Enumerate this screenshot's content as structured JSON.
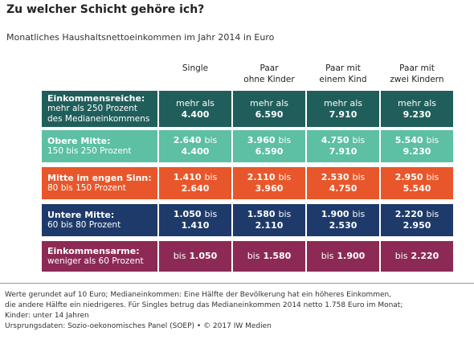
{
  "header": {
    "title": "Zu welcher Schicht gehöre ich?",
    "subtitle": "Monatliches Haushaltsnettoeinkommen im Jahr 2014 in Euro"
  },
  "table": {
    "columns": [
      [
        "Single"
      ],
      [
        "Paar",
        "ohne Kinder"
      ],
      [
        "Paar mit",
        "einem Kind"
      ],
      [
        "Paar mit",
        "zwei Kindern"
      ]
    ],
    "rows": [
      {
        "color": "#1f5e5a",
        "label": [
          "Einkommensreiche:",
          "mehr als 250 Prozent",
          "des Medianeinkommens"
        ],
        "cells": [
          [
            [
              {
                "text": "mehr als"
              }
            ],
            [
              {
                "text": "4.400",
                "bold": true
              }
            ]
          ],
          [
            [
              {
                "text": "mehr als"
              }
            ],
            [
              {
                "text": "6.590",
                "bold": true
              }
            ]
          ],
          [
            [
              {
                "text": "mehr als"
              }
            ],
            [
              {
                "text": "7.910",
                "bold": true
              }
            ]
          ],
          [
            [
              {
                "text": "mehr als"
              }
            ],
            [
              {
                "text": "9.230",
                "bold": true
              }
            ]
          ]
        ]
      },
      {
        "color": "#5dbfa4",
        "label": [
          "Obere Mitte:",
          "150 bis 250 Prozent"
        ],
        "cells": [
          [
            [
              {
                "text": "2.640",
                "bold": true
              },
              {
                "text": "bis"
              }
            ],
            [
              {
                "text": "4.400",
                "bold": true
              }
            ]
          ],
          [
            [
              {
                "text": "3.960",
                "bold": true
              },
              {
                "text": "bis"
              }
            ],
            [
              {
                "text": "6.590",
                "bold": true
              }
            ]
          ],
          [
            [
              {
                "text": "4.750",
                "bold": true
              },
              {
                "text": "bis"
              }
            ],
            [
              {
                "text": "7.910",
                "bold": true
              }
            ]
          ],
          [
            [
              {
                "text": "5.540",
                "bold": true
              },
              {
                "text": "bis"
              }
            ],
            [
              {
                "text": "9.230",
                "bold": true
              }
            ]
          ]
        ]
      },
      {
        "color": "#e8572b",
        "label": [
          "Mitte im engen Sinn:",
          "80 bis 150 Prozent"
        ],
        "cells": [
          [
            [
              {
                "text": "1.410",
                "bold": true
              },
              {
                "text": "bis"
              }
            ],
            [
              {
                "text": "2.640",
                "bold": true
              }
            ]
          ],
          [
            [
              {
                "text": "2.110",
                "bold": true
              },
              {
                "text": "bis"
              }
            ],
            [
              {
                "text": "3.960",
                "bold": true
              }
            ]
          ],
          [
            [
              {
                "text": "2.530",
                "bold": true
              },
              {
                "text": "bis"
              }
            ],
            [
              {
                "text": "4.750",
                "bold": true
              }
            ]
          ],
          [
            [
              {
                "text": "2.950",
                "bold": true
              },
              {
                "text": "bis"
              }
            ],
            [
              {
                "text": "5.540",
                "bold": true
              }
            ]
          ]
        ]
      },
      {
        "color": "#1e3a6a",
        "label": [
          "Untere Mitte:",
          "60 bis 80 Prozent"
        ],
        "cells": [
          [
            [
              {
                "text": "1.050",
                "bold": true
              },
              {
                "text": "bis"
              }
            ],
            [
              {
                "text": "1.410",
                "bold": true
              }
            ]
          ],
          [
            [
              {
                "text": "1.580",
                "bold": true
              },
              {
                "text": "bis"
              }
            ],
            [
              {
                "text": "2.110",
                "bold": true
              }
            ]
          ],
          [
            [
              {
                "text": "1.900",
                "bold": true
              },
              {
                "text": "bis"
              }
            ],
            [
              {
                "text": "2.530",
                "bold": true
              }
            ]
          ],
          [
            [
              {
                "text": "2.220",
                "bold": true
              },
              {
                "text": "bis"
              }
            ],
            [
              {
                "text": "2.950",
                "bold": true
              }
            ]
          ]
        ]
      },
      {
        "color": "#8c2a55",
        "label": [
          "Einkommensarme:",
          "weniger als 60 Prozent"
        ],
        "cells": [
          [
            [
              {
                "text": "bis"
              },
              {
                "text": "1.050",
                "bold": true
              }
            ]
          ],
          [
            [
              {
                "text": "bis"
              },
              {
                "text": "1.580",
                "bold": true
              }
            ]
          ],
          [
            [
              {
                "text": "bis"
              },
              {
                "text": "1.900",
                "bold": true
              }
            ]
          ],
          [
            [
              {
                "text": "bis"
              },
              {
                "text": "2.220",
                "bold": true
              }
            ]
          ]
        ]
      }
    ]
  },
  "footer": {
    "lines": [
      "Werte gerundet auf 10 Euro; Medianeinkommen: Eine Hälfte der Bevölkerung hat ein höheres Einkommen,",
      "die andere Hälfte ein niedrigeres. Für Singles betrug das Medianeinkommen 2014 netto 1.758 Euro im Monat;",
      "Kinder: unter 14 Jahren",
      "Ursprungsdaten: Sozio-oekonomisches Panel (SOEP) • © 2017 IW Medien"
    ]
  }
}
